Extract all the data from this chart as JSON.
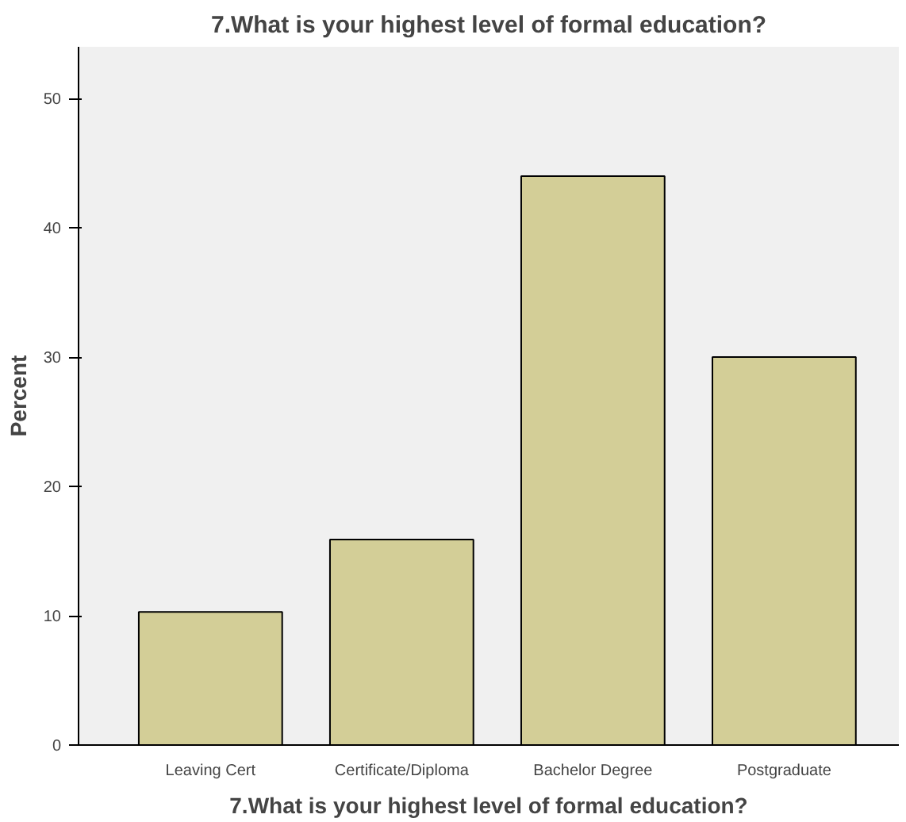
{
  "chart_data": {
    "type": "bar",
    "title": "7.What is your highest level of formal education?",
    "xlabel": "7.What is your highest level of formal education?",
    "ylabel": "Percent",
    "categories": [
      "Leaving Cert",
      "Certificate/Diploma",
      "Bachelor Degree",
      "Postgraduate"
    ],
    "values": [
      10.3,
      15.9,
      44.0,
      30.0
    ],
    "color": "#d3ce97",
    "ylim": [
      0,
      54
    ],
    "yticks": [
      0,
      10,
      20,
      30,
      40,
      50
    ],
    "grid": false
  }
}
